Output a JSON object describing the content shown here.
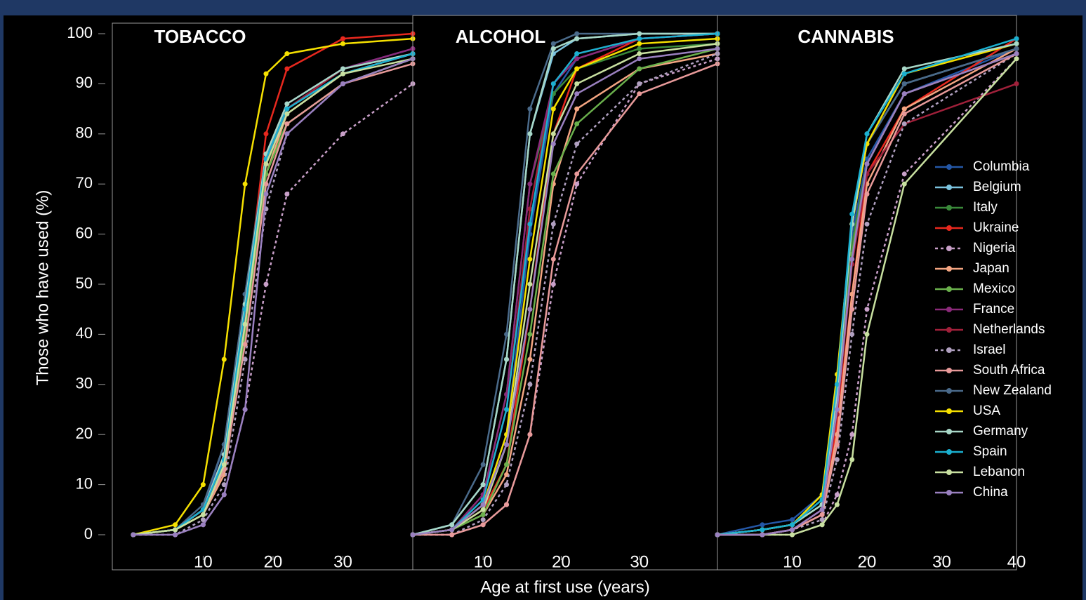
{
  "chart_data": [
    {
      "type": "line",
      "title": "TOBACCO",
      "y_label": "Those who have used (%)",
      "x": [
        0,
        6,
        10,
        13,
        16,
        19,
        22,
        30,
        40
      ],
      "xlim": [
        -3,
        40
      ],
      "xticks": [
        10,
        20,
        30
      ],
      "ylim": [
        0,
        100
      ],
      "yticks": [
        0,
        10,
        20,
        30,
        40,
        50,
        60,
        70,
        80,
        90,
        100
      ],
      "series": [
        {
          "name": "Columbia",
          "color": "#2457a6",
          "values": [
            0,
            1,
            5,
            18,
            48,
            75,
            85,
            93,
            97
          ]
        },
        {
          "name": "Belgium",
          "color": "#7cc3df",
          "values": [
            0,
            1,
            5,
            15,
            45,
            75,
            85,
            92,
            96
          ]
        },
        {
          "name": "Italy",
          "color": "#3a8a3a",
          "values": [
            0,
            1,
            4,
            14,
            42,
            74,
            82,
            90,
            95
          ]
        },
        {
          "name": "Ukraine",
          "color": "#e8281e",
          "values": [
            0,
            1,
            5,
            15,
            45,
            80,
            93,
            99,
            100
          ]
        },
        {
          "name": "Nigeria",
          "color": "#c9a0c9",
          "dashed": true,
          "values": [
            0,
            0,
            2,
            8,
            25,
            50,
            68,
            80,
            90
          ]
        },
        {
          "name": "Japan",
          "color": "#f4a582",
          "values": [
            0,
            1,
            4,
            12,
            40,
            72,
            84,
            92,
            96
          ]
        },
        {
          "name": "Mexico",
          "color": "#6ab04c",
          "values": [
            0,
            1,
            4,
            13,
            40,
            72,
            82,
            90,
            95
          ]
        },
        {
          "name": "France",
          "color": "#8b2a7a",
          "values": [
            0,
            1,
            5,
            16,
            45,
            76,
            86,
            93,
            97
          ]
        },
        {
          "name": "Netherlands",
          "color": "#a0203a",
          "values": [
            0,
            1,
            5,
            16,
            44,
            74,
            85,
            93,
            96
          ]
        },
        {
          "name": "Israel",
          "color": "#b0a0c0",
          "dashed": true,
          "values": [
            0,
            0,
            3,
            10,
            35,
            65,
            80,
            90,
            95
          ]
        },
        {
          "name": "South Africa",
          "color": "#e89a9a",
          "values": [
            0,
            1,
            4,
            13,
            38,
            70,
            82,
            90,
            94
          ]
        },
        {
          "name": "New Zealand",
          "color": "#4a6a8a",
          "values": [
            0,
            1,
            6,
            18,
            48,
            76,
            86,
            93,
            96
          ]
        },
        {
          "name": "USA",
          "color": "#f5e000",
          "values": [
            0,
            2,
            10,
            35,
            70,
            92,
            96,
            98,
            99
          ]
        },
        {
          "name": "Germany",
          "color": "#a8d8c8",
          "values": [
            0,
            1,
            5,
            16,
            46,
            76,
            86,
            93,
            96
          ]
        },
        {
          "name": "Spain",
          "color": "#1ab0d0",
          "values": [
            0,
            1,
            5,
            15,
            45,
            75,
            85,
            92,
            96
          ]
        },
        {
          "name": "Lebanon",
          "color": "#c8e0a0",
          "values": [
            0,
            1,
            4,
            14,
            42,
            74,
            84,
            92,
            95
          ]
        },
        {
          "name": "China",
          "color": "#9a80c0",
          "values": [
            0,
            0,
            2,
            8,
            25,
            68,
            80,
            90,
            95
          ]
        }
      ]
    },
    {
      "type": "line",
      "title": "ALCOHOL",
      "x_label": "Age at first use (years)",
      "x": [
        1,
        6,
        10,
        13,
        16,
        19,
        22,
        30,
        40
      ],
      "xlim": [
        1,
        40
      ],
      "xticks": [
        10,
        20,
        30
      ],
      "ylim": [
        0,
        100
      ],
      "series": [
        {
          "name": "Columbia",
          "color": "#2457a6",
          "values": [
            0,
            1,
            6,
            20,
            60,
            88,
            95,
            99,
            100
          ]
        },
        {
          "name": "Belgium",
          "color": "#7cc3df",
          "values": [
            0,
            2,
            10,
            35,
            80,
            96,
            99,
            100,
            100
          ]
        },
        {
          "name": "Italy",
          "color": "#3a8a3a",
          "values": [
            0,
            1,
            8,
            28,
            70,
            88,
            93,
            97,
            98
          ]
        },
        {
          "name": "Ukraine",
          "color": "#e8281e",
          "values": [
            0,
            1,
            5,
            14,
            45,
            80,
            93,
            99,
            100
          ]
        },
        {
          "name": "Nigeria",
          "color": "#c9a0c9",
          "dashed": true,
          "values": [
            0,
            0,
            2,
            6,
            20,
            50,
            70,
            90,
            95
          ]
        },
        {
          "name": "Japan",
          "color": "#f4a582",
          "values": [
            0,
            1,
            4,
            12,
            35,
            70,
            85,
            93,
            96
          ]
        },
        {
          "name": "Mexico",
          "color": "#6ab04c",
          "values": [
            0,
            1,
            4,
            14,
            40,
            72,
            82,
            93,
            97
          ]
        },
        {
          "name": "France",
          "color": "#8b2a7a",
          "values": [
            0,
            1,
            8,
            28,
            70,
            90,
            95,
            99,
            100
          ]
        },
        {
          "name": "Netherlands",
          "color": "#a0203a",
          "values": [
            0,
            1,
            7,
            25,
            65,
            90,
            96,
            99,
            100
          ]
        },
        {
          "name": "Israel",
          "color": "#b0a0c0",
          "dashed": true,
          "values": [
            0,
            0,
            3,
            10,
            30,
            62,
            78,
            90,
            96
          ]
        },
        {
          "name": "South Africa",
          "color": "#e89a9a",
          "values": [
            0,
            0,
            2,
            6,
            20,
            55,
            72,
            88,
            94
          ]
        },
        {
          "name": "New Zealand",
          "color": "#4a6a8a",
          "values": [
            0,
            2,
            14,
            40,
            85,
            98,
            100,
            100,
            100
          ]
        },
        {
          "name": "USA",
          "color": "#f5e000",
          "values": [
            0,
            1,
            6,
            20,
            55,
            85,
            93,
            98,
            99
          ]
        },
        {
          "name": "Germany",
          "color": "#a8d8c8",
          "values": [
            0,
            2,
            10,
            35,
            80,
            97,
            99,
            100,
            100
          ]
        },
        {
          "name": "Spain",
          "color": "#1ab0d0",
          "values": [
            0,
            1,
            7,
            25,
            62,
            90,
            96,
            99,
            100
          ]
        },
        {
          "name": "Lebanon",
          "color": "#c8e0a0",
          "values": [
            0,
            1,
            5,
            18,
            50,
            80,
            90,
            96,
            98
          ]
        },
        {
          "name": "China",
          "color": "#9a80c0",
          "values": [
            0,
            1,
            6,
            18,
            45,
            78,
            88,
            95,
            97
          ]
        }
      ]
    },
    {
      "type": "line",
      "title": "CANNABIS",
      "legend": "right",
      "x": [
        0,
        6,
        10,
        14,
        16,
        18,
        20,
        25,
        40
      ],
      "xlim": [
        0,
        40
      ],
      "xticks": [
        10,
        20,
        30,
        40
      ],
      "ylim": [
        0,
        100
      ],
      "series": [
        {
          "name": "Columbia",
          "color": "#2457a6",
          "values": [
            0,
            2,
            3,
            8,
            30,
            60,
            75,
            88,
            97
          ]
        },
        {
          "name": "Belgium",
          "color": "#7cc3df",
          "values": [
            0,
            1,
            2,
            6,
            28,
            62,
            78,
            90,
            97
          ]
        },
        {
          "name": "Italy",
          "color": "#3a8a3a",
          "values": [
            0,
            1,
            2,
            6,
            26,
            58,
            74,
            88,
            96
          ]
        },
        {
          "name": "Ukraine",
          "color": "#e8281e",
          "values": [
            0,
            0,
            1,
            4,
            22,
            48,
            72,
            85,
            99
          ]
        },
        {
          "name": "Nigeria",
          "color": "#c9a0c9",
          "dashed": true,
          "values": [
            0,
            0,
            0,
            2,
            8,
            20,
            45,
            72,
            95
          ]
        },
        {
          "name": "Japan",
          "color": "#f4a582",
          "values": [
            0,
            0,
            1,
            4,
            20,
            48,
            70,
            85,
            97
          ]
        },
        {
          "name": "Mexico",
          "color": "#6ab04c",
          "values": [
            0,
            1,
            2,
            6,
            25,
            56,
            74,
            88,
            96
          ]
        },
        {
          "name": "France",
          "color": "#8b2a7a",
          "values": [
            0,
            0,
            1,
            5,
            25,
            55,
            74,
            88,
            96
          ]
        },
        {
          "name": "Netherlands",
          "color": "#a0203a",
          "values": [
            0,
            0,
            1,
            5,
            24,
            54,
            72,
            82,
            90
          ]
        },
        {
          "name": "Israel",
          "color": "#b0a0c0",
          "dashed": true,
          "values": [
            0,
            0,
            1,
            3,
            15,
            40,
            62,
            82,
            96
          ]
        },
        {
          "name": "South Africa",
          "color": "#e89a9a",
          "values": [
            0,
            0,
            1,
            4,
            18,
            45,
            68,
            84,
            96
          ]
        },
        {
          "name": "New Zealand",
          "color": "#4a6a8a",
          "values": [
            0,
            1,
            2,
            7,
            30,
            62,
            78,
            90,
            97
          ]
        },
        {
          "name": "USA",
          "color": "#f5e000",
          "values": [
            0,
            1,
            2,
            8,
            32,
            62,
            78,
            92,
            98
          ]
        },
        {
          "name": "Germany",
          "color": "#a8d8c8",
          "values": [
            0,
            1,
            2,
            6,
            28,
            62,
            80,
            93,
            98
          ]
        },
        {
          "name": "Spain",
          "color": "#1ab0d0",
          "values": [
            0,
            1,
            2,
            7,
            30,
            64,
            80,
            92,
            99
          ]
        },
        {
          "name": "Lebanon",
          "color": "#c8e0a0",
          "values": [
            0,
            0,
            0,
            2,
            6,
            15,
            40,
            70,
            95
          ]
        },
        {
          "name": "China",
          "color": "#9a80c0",
          "values": [
            0,
            0,
            1,
            5,
            25,
            55,
            74,
            88,
            96
          ]
        }
      ]
    }
  ]
}
